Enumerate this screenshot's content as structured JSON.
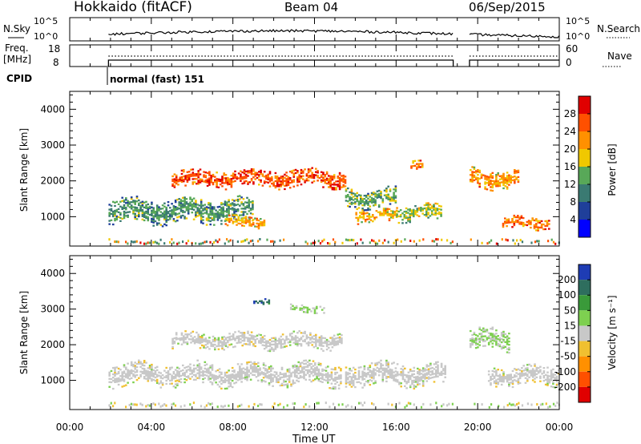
{
  "header": {
    "station": "Hokkaido (fitACF)",
    "beam": "Beam 04",
    "date": "06/Sep/2015"
  },
  "noise_panel": {
    "left_label": "N.Sky",
    "right_label": "N.Search",
    "left_ticks": [
      "10^5",
      "10^0"
    ],
    "right_ticks": [
      "10^5",
      "10^0"
    ]
  },
  "freq_panel": {
    "left_label_line1": "Freq.",
    "left_label_line2": "[MHz]",
    "right_label": "Nave",
    "left_ticks": [
      "18",
      "8"
    ],
    "right_ticks": [
      "60",
      "0"
    ]
  },
  "cpid_panel": {
    "label": "CPID",
    "mode_text": "normal (fast) 151"
  },
  "x_axis": {
    "label": "Time UT",
    "tick_labels": [
      "00:00",
      "04:00",
      "08:00",
      "12:00",
      "16:00",
      "20:00",
      "00:00"
    ]
  },
  "power_colorbar": {
    "label": "Power [dB]",
    "tick_labels": [
      "28",
      "24",
      "20",
      "16",
      "12",
      "8",
      "4"
    ],
    "colors": [
      "#e00000",
      "#ff5000",
      "#ff9000",
      "#f0c800",
      "#58a858",
      "#3a7a72",
      "#1f3f9a",
      "#0000ff"
    ]
  },
  "velocity_colorbar": {
    "label": "Velocity [m s⁻¹]",
    "tick_labels": [
      "200",
      "100",
      "50",
      "15",
      "-15",
      "-50",
      "-100",
      "-200"
    ],
    "colors": [
      "#1e3cb4",
      "#2e6e5e",
      "#3a9a3a",
      "#7ed050",
      "#c8c8c8",
      "#f0c030",
      "#ff9000",
      "#ff5000",
      "#e00000"
    ]
  },
  "chart_data": [
    {
      "type": "heatmap",
      "title": "Power",
      "xlabel": "Time UT",
      "ylabel": "Slant Range [km]",
      "y_tick_labels": [
        "1000",
        "2000",
        "3000",
        "4000"
      ],
      "xlim": [
        0,
        24
      ],
      "ylim": [
        180,
        4500
      ],
      "data_gap_hours": [
        18.8,
        19.6
      ],
      "colorbar_range_db": [
        0,
        32
      ],
      "regions": [
        {
          "t0": 5.0,
          "t1": 13.5,
          "r_center": 2050,
          "r_halfwidth": 230,
          "value": 26
        },
        {
          "t0": 1.9,
          "t1": 9.0,
          "r_center": 1150,
          "r_halfwidth": 330,
          "value": 12
        },
        {
          "t0": 7.6,
          "t1": 9.5,
          "r_center": 850,
          "r_halfwidth": 150,
          "value": 20
        },
        {
          "t0": 13.5,
          "t1": 16.0,
          "r_center": 1500,
          "r_halfwidth": 250,
          "value": 14
        },
        {
          "t0": 14.0,
          "t1": 16.0,
          "r_center": 1000,
          "r_halfwidth": 170,
          "value": 20
        },
        {
          "t0": 16.0,
          "t1": 18.2,
          "r_center": 1100,
          "r_halfwidth": 220,
          "value": 16
        },
        {
          "t0": 16.7,
          "t1": 17.3,
          "r_center": 2400,
          "r_halfwidth": 120,
          "value": 24
        },
        {
          "t0": 19.6,
          "t1": 22.0,
          "r_center": 2050,
          "r_halfwidth": 260,
          "value": 22
        },
        {
          "t0": 21.2,
          "t1": 23.5,
          "r_center": 800,
          "r_halfwidth": 160,
          "value": 24
        }
      ]
    },
    {
      "type": "heatmap",
      "title": "Velocity",
      "xlabel": "Time UT",
      "ylabel": "Slant Range [km]",
      "y_tick_labels": [
        "1000",
        "2000",
        "3000",
        "4000"
      ],
      "xlim": [
        0,
        24
      ],
      "ylim": [
        180,
        4500
      ],
      "data_gap_hours": [
        18.8,
        19.6
      ],
      "colorbar_range_ms": [
        -250,
        250
      ],
      "regions": [
        {
          "t0": 1.9,
          "t1": 13.3,
          "r_center": 1150,
          "r_halfwidth": 300,
          "value": 0
        },
        {
          "t0": 5.0,
          "t1": 13.3,
          "r_center": 2100,
          "r_halfwidth": 220,
          "value": 0
        },
        {
          "t0": 10.8,
          "t1": 12.5,
          "r_center": 3000,
          "r_halfwidth": 100,
          "value": 40
        },
        {
          "t0": 9.0,
          "t1": 9.8,
          "r_center": 3200,
          "r_halfwidth": 70,
          "value": 180
        },
        {
          "t0": 13.5,
          "t1": 18.4,
          "r_center": 1150,
          "r_halfwidth": 300,
          "value": 0
        },
        {
          "t0": 19.6,
          "t1": 21.5,
          "r_center": 2100,
          "r_halfwidth": 300,
          "value": 30
        },
        {
          "t0": 20.5,
          "t1": 24.0,
          "r_center": 1100,
          "r_halfwidth": 250,
          "value": 0
        }
      ]
    }
  ]
}
